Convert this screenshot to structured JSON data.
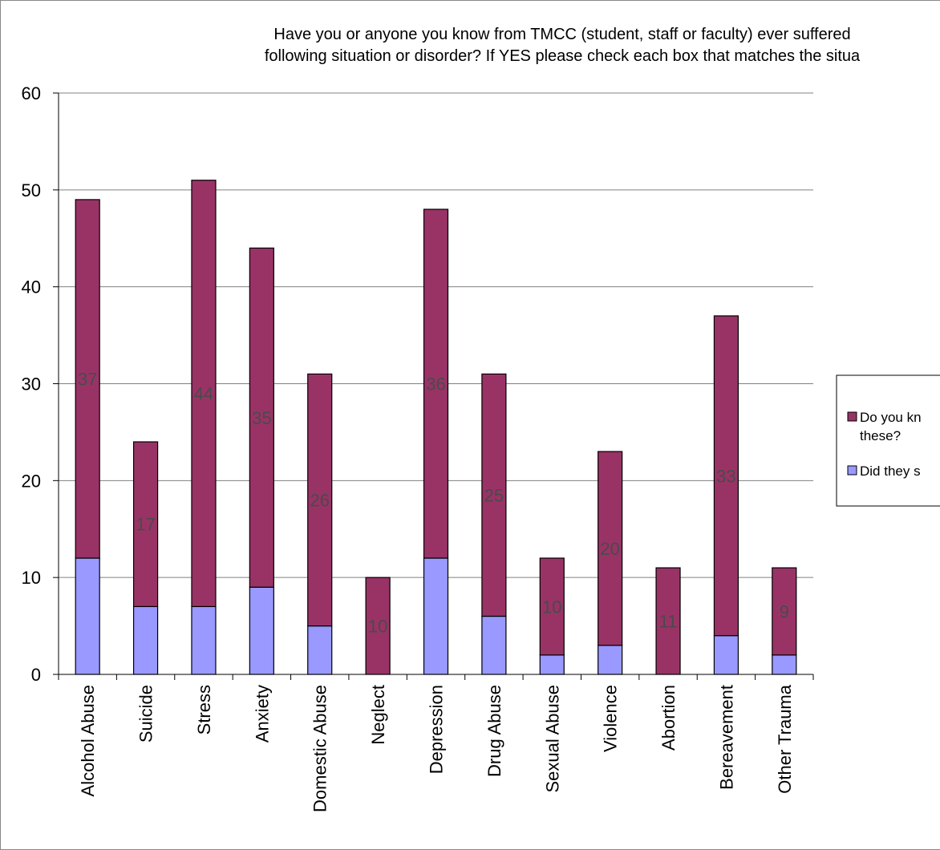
{
  "chart_data": {
    "type": "bar",
    "stacked": true,
    "title_lines": [
      "Have you or anyone you know from TMCC (student, staff or faculty) ever suffered",
      "following situation or disorder? If YES please check each box that matches the situa"
    ],
    "categories": [
      "Alcohol Abuse",
      "Suicide",
      "Stress",
      "Anxiety",
      "Domestic Abuse",
      "Neglect",
      "Depression",
      "Drug Abuse",
      "Sexual Abuse",
      "Violence",
      "Abortion",
      "Bereavement",
      "Other Trauma"
    ],
    "series": [
      {
        "name": "Did they s",
        "color": "#9999ff",
        "values": [
          12,
          7,
          7,
          9,
          5,
          0,
          12,
          6,
          2,
          3,
          0,
          4,
          2
        ]
      },
      {
        "name_lines": [
          "Do you kn",
          "these?"
        ],
        "color": "#993366",
        "values": [
          37,
          17,
          44,
          35,
          26,
          10,
          36,
          25,
          10,
          20,
          11,
          33,
          9
        ],
        "data_labels": [
          "37",
          "17",
          "44",
          "35",
          "26",
          "10",
          "36",
          "25",
          "10",
          "20",
          "11",
          "33",
          "9"
        ]
      }
    ],
    "y_ticks": [
      "0",
      "10",
      "20",
      "30",
      "40",
      "50",
      "60"
    ],
    "ylim": [
      0,
      60
    ],
    "grid": true,
    "legend_position": "right"
  }
}
